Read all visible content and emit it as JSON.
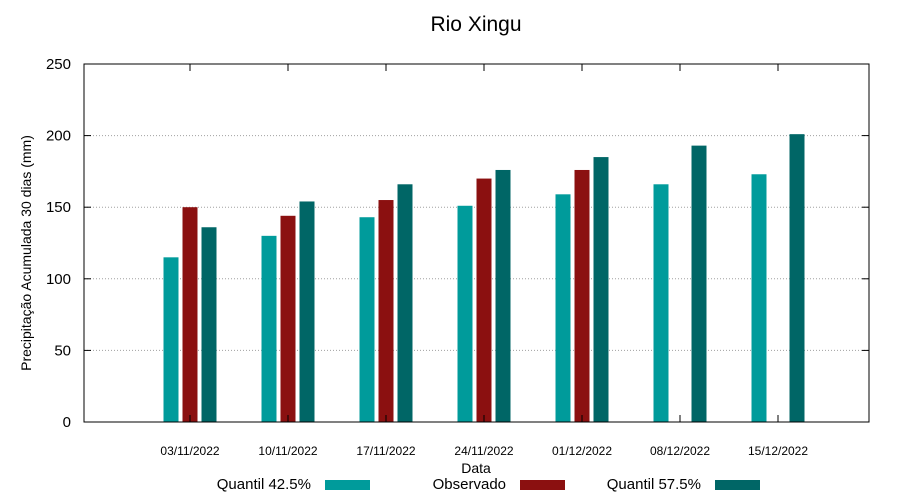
{
  "chart_data": {
    "type": "bar",
    "title": "Rio Xingu",
    "xlabel": "Data",
    "ylabel": "Precipitação Acumulada 30 dias (mm)",
    "ylim": [
      0,
      250
    ],
    "yticks": [
      0,
      50,
      100,
      150,
      200,
      250
    ],
    "grid": true,
    "legend_position": "bottom",
    "categories": [
      "03/11/2022",
      "10/11/2022",
      "17/11/2022",
      "24/11/2022",
      "01/12/2022",
      "08/12/2022",
      "15/12/2022"
    ],
    "series": [
      {
        "name": "Quantil 42.5%",
        "color": "#009b9b",
        "values": [
          115,
          130,
          143,
          151,
          159,
          166,
          173
        ]
      },
      {
        "name": "Observado",
        "color": "#8b1010",
        "values": [
          150,
          144,
          155,
          170,
          176,
          null,
          null
        ]
      },
      {
        "name": "Quantil 57.5%",
        "color": "#006666",
        "values": [
          136,
          154,
          166,
          176,
          185,
          193,
          201
        ]
      }
    ]
  }
}
